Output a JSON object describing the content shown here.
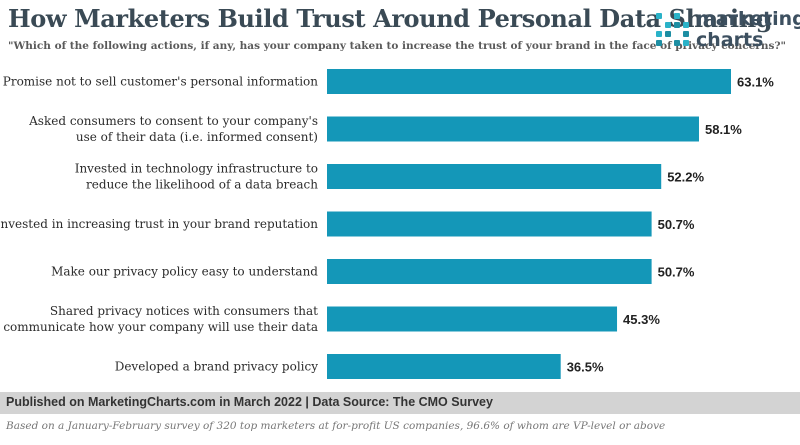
{
  "header": {
    "title": "How Marketers Build Trust Around Personal Data Sharing",
    "subtitle": "\"Which of the following actions, if any, has your company taken to increase the trust of your brand in the face of privacy concerns?\""
  },
  "logo": {
    "line1": "marketing",
    "line2": "charts",
    "dot_color": "#2ab2c8",
    "dot_color_alt": "#1d8ea3"
  },
  "chart_data": {
    "type": "bar",
    "orientation": "horizontal",
    "title": "How Marketers Build Trust Around Personal Data Sharing",
    "categories": [
      [
        "Promise not to sell customer's personal information"
      ],
      [
        "Asked consumers to consent to your company's",
        "use of their data (i.e. informed consent)"
      ],
      [
        "Invested in technology infrastructure to",
        "reduce the likelihood of a data breach"
      ],
      [
        "Invested in increasing trust in your brand reputation"
      ],
      [
        "Make our privacy policy easy to understand"
      ],
      [
        "Shared privacy notices with consumers that",
        "communicate how your company will use their data"
      ],
      [
        "Developed a brand privacy policy"
      ]
    ],
    "values": [
      63.1,
      58.1,
      52.2,
      50.7,
      50.7,
      45.3,
      36.5
    ],
    "value_labels": [
      "63.1%",
      "58.1%",
      "52.2%",
      "50.7%",
      "50.7%",
      "45.3%",
      "36.5%"
    ],
    "unit": "%",
    "bar_color": "#1497b8",
    "xlim": [
      0,
      66
    ]
  },
  "footer": {
    "source": "Published on MarketingCharts.com in March 2022 | Data Source: The CMO Survey",
    "note": "Based on a January-February survey of 320 top marketers at for-profit US companies, 96.6% of whom are VP-level or above"
  }
}
